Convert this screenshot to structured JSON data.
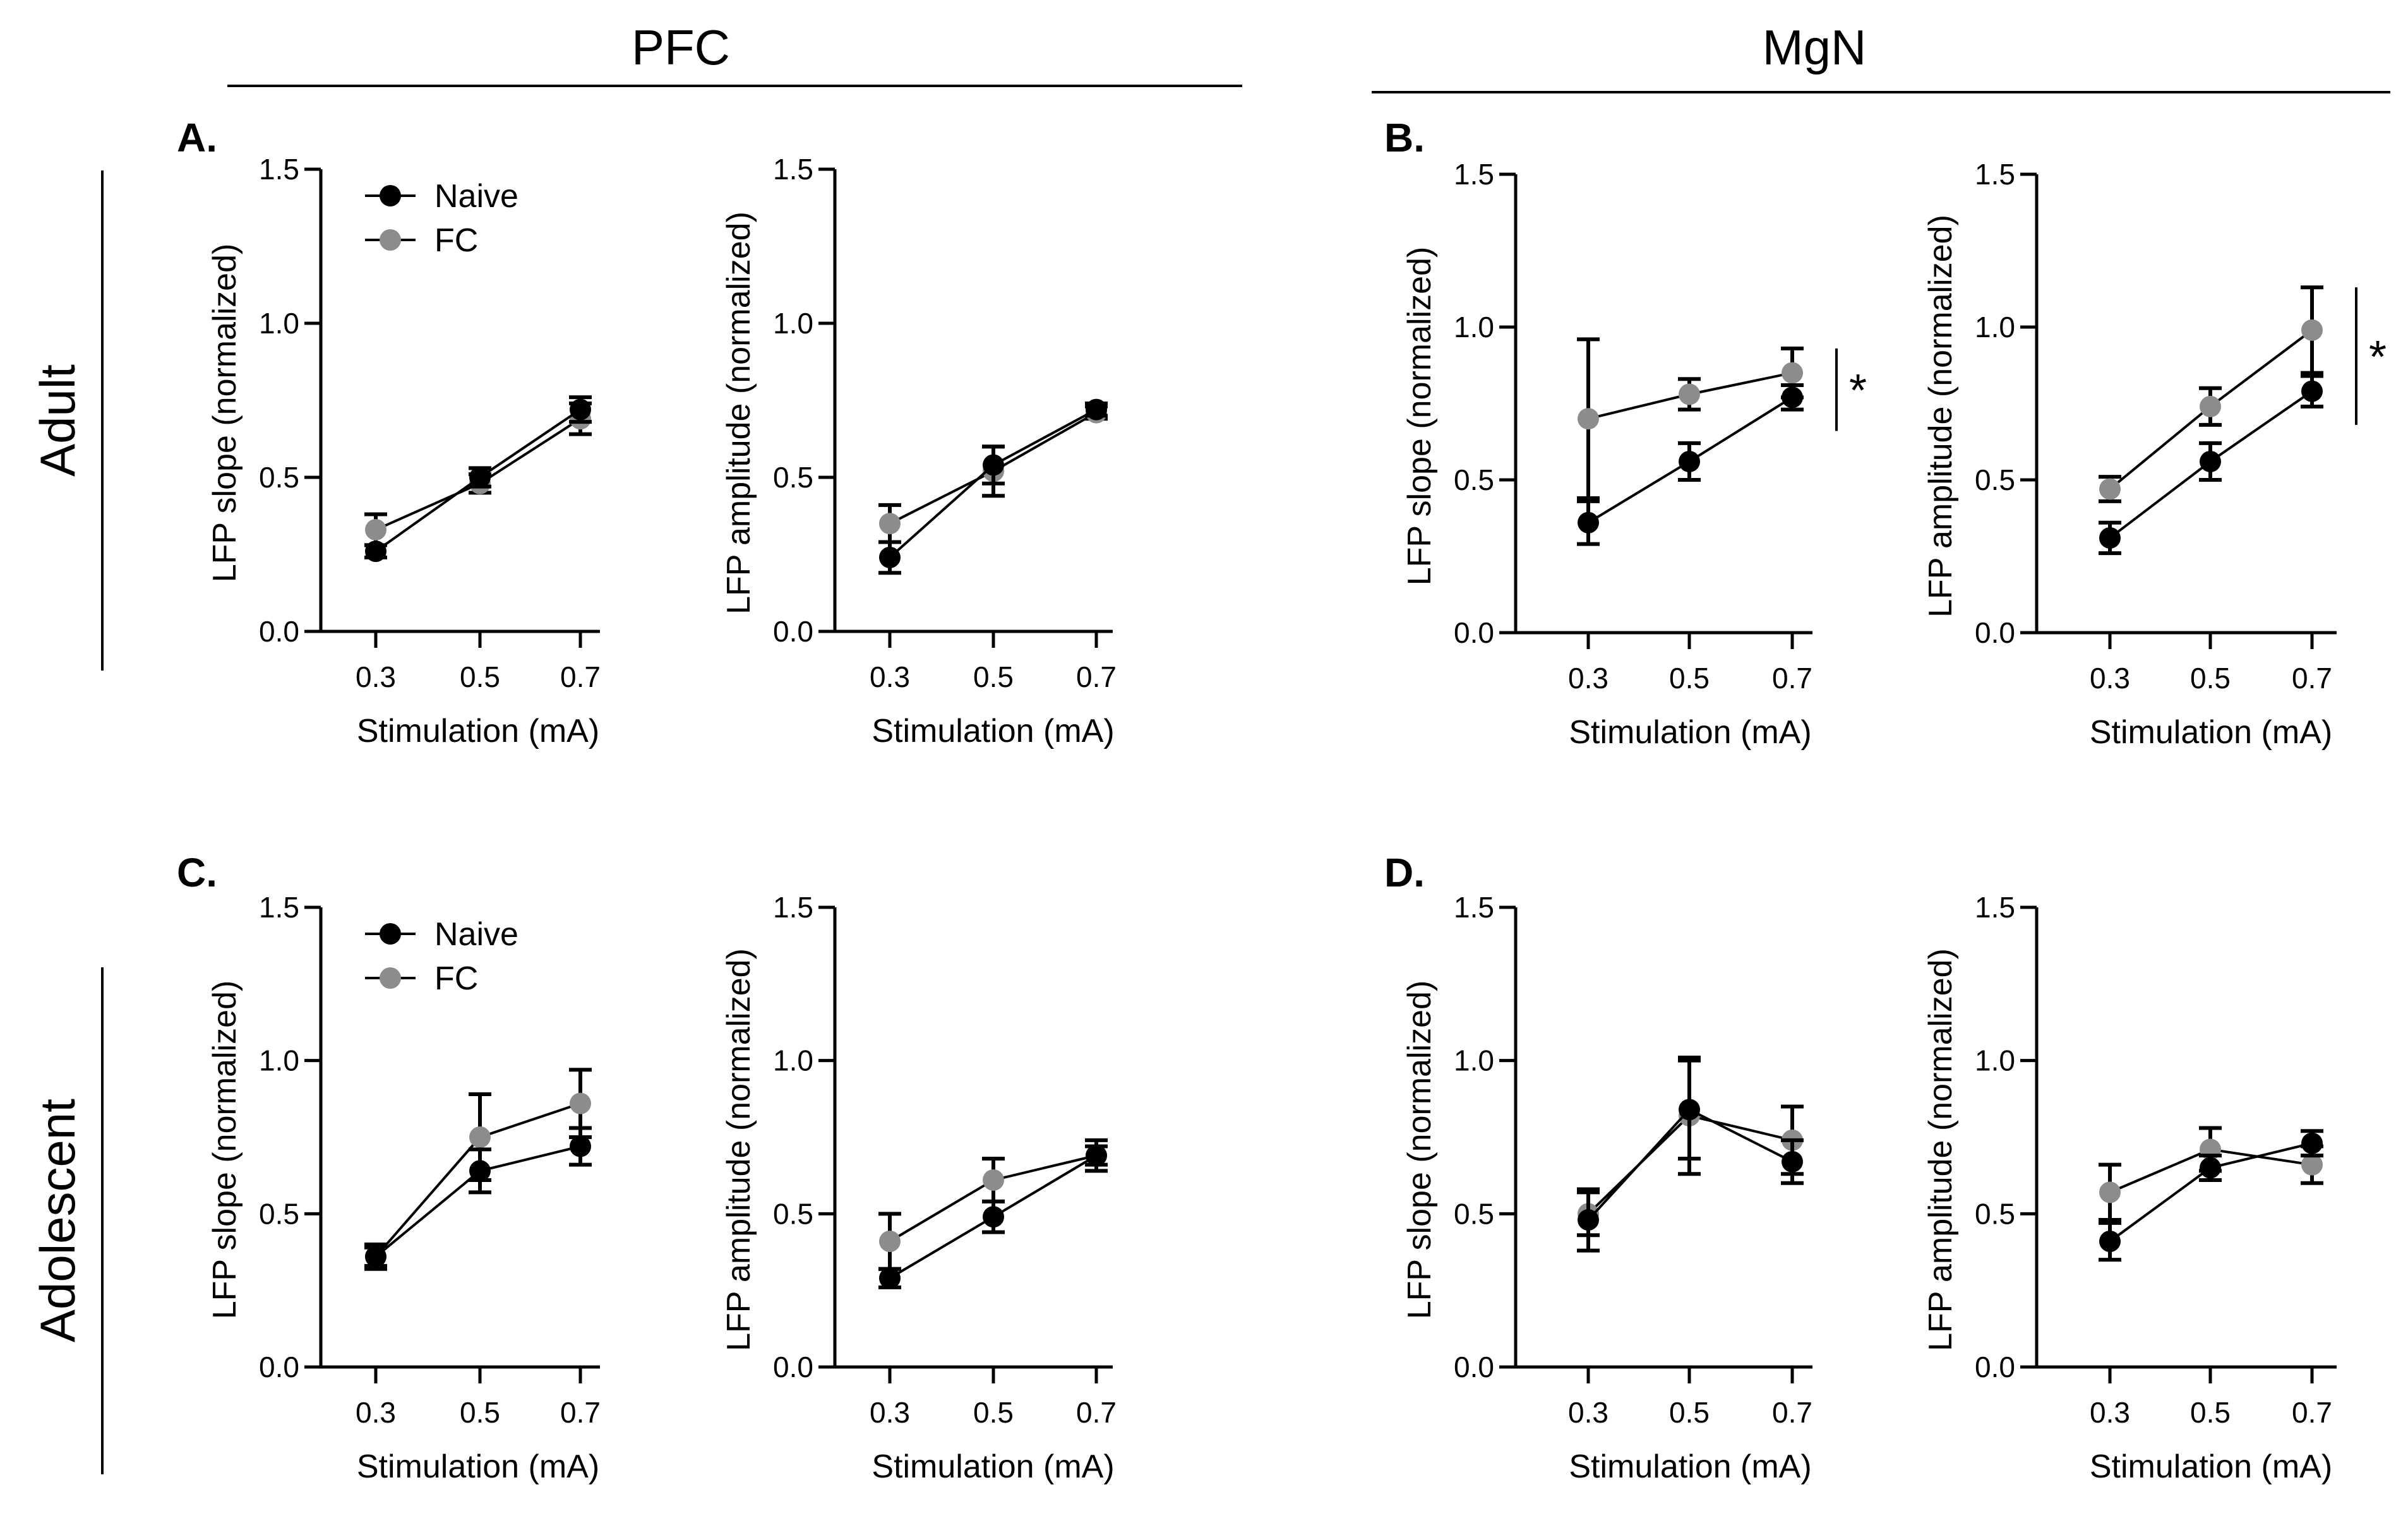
{
  "colors": {
    "naive": "#000000",
    "fc": "#8c8c8c",
    "axis": "#000000"
  },
  "headers": {
    "pfc": "PFC",
    "mgn": "MgN"
  },
  "row_labels": {
    "adult": "Adult",
    "adolescent": "Adolescent"
  },
  "panels": {
    "a": "A.",
    "b": "B.",
    "c": "C.",
    "d": "D."
  },
  "legend": {
    "naive": "Naive",
    "fc": "FC"
  },
  "significance": "*",
  "chart_data": [
    {
      "id": "A-slope",
      "panel": "A.",
      "type": "line",
      "categories": [
        "0.3",
        "0.5",
        "0.7"
      ],
      "xlabel": "Stimulation (mA)",
      "ylabel": "LFP slope (normalized)",
      "ylim": [
        0,
        1.5
      ],
      "yticks": [
        "0.0",
        "0.5",
        "1.0",
        "1.5"
      ],
      "legend": true,
      "significance": false,
      "series": [
        {
          "name": "Naive",
          "values": [
            0.26,
            0.5,
            0.72
          ],
          "errors": [
            0.02,
            0.03,
            0.04
          ]
        },
        {
          "name": "FC",
          "values": [
            0.33,
            0.48,
            0.69
          ],
          "errors": [
            0.05,
            0.03,
            0.05
          ]
        }
      ]
    },
    {
      "id": "A-amp",
      "panel": "",
      "type": "line",
      "categories": [
        "0.3",
        "0.5",
        "0.7"
      ],
      "xlabel": "Stimulation (mA)",
      "ylabel": "LFP amplitude (normalized)",
      "ylim": [
        0,
        1.5
      ],
      "yticks": [
        "0.0",
        "0.5",
        "1.0",
        "1.5"
      ],
      "legend": false,
      "significance": false,
      "series": [
        {
          "name": "Naive",
          "values": [
            0.24,
            0.54,
            0.72
          ],
          "errors": [
            0.05,
            0.06,
            0.02
          ]
        },
        {
          "name": "FC",
          "values": [
            0.35,
            0.52,
            0.71
          ],
          "errors": [
            0.06,
            0.08,
            0.02
          ]
        }
      ]
    },
    {
      "id": "B-slope",
      "panel": "B.",
      "type": "line",
      "categories": [
        "0.3",
        "0.5",
        "0.7"
      ],
      "xlabel": "Stimulation (mA)",
      "ylabel": "LFP slope (normalized)",
      "ylim": [
        0,
        1.5
      ],
      "yticks": [
        "0.0",
        "0.5",
        "1.0",
        "1.5"
      ],
      "legend": false,
      "significance": true,
      "series": [
        {
          "name": "Naive",
          "values": [
            0.36,
            0.56,
            0.77
          ],
          "errors": [
            0.07,
            0.06,
            0.04
          ]
        },
        {
          "name": "FC",
          "values": [
            0.7,
            0.78,
            0.85
          ],
          "errors": [
            0.26,
            0.05,
            0.08
          ]
        }
      ]
    },
    {
      "id": "B-amp",
      "panel": "",
      "type": "line",
      "categories": [
        "0.3",
        "0.5",
        "0.7"
      ],
      "xlabel": "Stimulation (mA)",
      "ylabel": "LFP amplitude (normalized)",
      "ylim": [
        0,
        1.5
      ],
      "yticks": [
        "0.0",
        "0.5",
        "1.0",
        "1.5"
      ],
      "legend": false,
      "significance": true,
      "series": [
        {
          "name": "Naive",
          "values": [
            0.31,
            0.56,
            0.79
          ],
          "errors": [
            0.05,
            0.06,
            0.05
          ]
        },
        {
          "name": "FC",
          "values": [
            0.47,
            0.74,
            0.99
          ],
          "errors": [
            0.04,
            0.06,
            0.14
          ]
        }
      ]
    },
    {
      "id": "C-slope",
      "panel": "C.",
      "type": "line",
      "categories": [
        "0.3",
        "0.5",
        "0.7"
      ],
      "xlabel": "Stimulation (mA)",
      "ylabel": "LFP slope (normalized)",
      "ylim": [
        0,
        1.5
      ],
      "yticks": [
        "0.0",
        "0.5",
        "1.0",
        "1.5"
      ],
      "legend": true,
      "significance": false,
      "series": [
        {
          "name": "Naive",
          "values": [
            0.36,
            0.64,
            0.72
          ],
          "errors": [
            0.04,
            0.07,
            0.06
          ]
        },
        {
          "name": "FC",
          "values": [
            0.36,
            0.75,
            0.86
          ],
          "errors": [
            0.03,
            0.14,
            0.11
          ]
        }
      ]
    },
    {
      "id": "C-amp",
      "panel": "",
      "type": "line",
      "categories": [
        "0.3",
        "0.5",
        "0.7"
      ],
      "xlabel": "Stimulation (mA)",
      "ylabel": "LFP amplitude (normalized)",
      "ylim": [
        0,
        1.5
      ],
      "yticks": [
        "0.0",
        "0.5",
        "1.0",
        "1.5"
      ],
      "legend": false,
      "significance": false,
      "series": [
        {
          "name": "Naive",
          "values": [
            0.29,
            0.49,
            0.69
          ],
          "errors": [
            0.03,
            0.05,
            0.03
          ]
        },
        {
          "name": "FC",
          "values": [
            0.41,
            0.61,
            0.69
          ],
          "errors": [
            0.09,
            0.07,
            0.05
          ]
        }
      ]
    },
    {
      "id": "D-slope",
      "panel": "D.",
      "type": "line",
      "categories": [
        "0.3",
        "0.5",
        "0.7"
      ],
      "xlabel": "Stimulation (mA)",
      "ylabel": "LFP slope (normalized)",
      "ylim": [
        0,
        1.5
      ],
      "yticks": [
        "0.0",
        "0.5",
        "1.0",
        "1.5"
      ],
      "legend": false,
      "significance": false,
      "series": [
        {
          "name": "Naive",
          "values": [
            0.48,
            0.84,
            0.67
          ],
          "errors": [
            0.1,
            0.16,
            0.07
          ]
        },
        {
          "name": "FC",
          "values": [
            0.5,
            0.82,
            0.74
          ],
          "errors": [
            0.07,
            0.19,
            0.11
          ]
        }
      ]
    },
    {
      "id": "D-amp",
      "panel": "",
      "type": "line",
      "categories": [
        "0.3",
        "0.5",
        "0.7"
      ],
      "xlabel": "Stimulation (mA)",
      "ylabel": "LFP amplitude (normalized)",
      "ylim": [
        0,
        1.5
      ],
      "yticks": [
        "0.0",
        "0.5",
        "1.0",
        "1.5"
      ],
      "legend": false,
      "significance": false,
      "series": [
        {
          "name": "Naive",
          "values": [
            0.41,
            0.65,
            0.73
          ],
          "errors": [
            0.06,
            0.04,
            0.04
          ]
        },
        {
          "name": "FC",
          "values": [
            0.57,
            0.71,
            0.66
          ],
          "errors": [
            0.09,
            0.07,
            0.06
          ]
        }
      ]
    }
  ]
}
